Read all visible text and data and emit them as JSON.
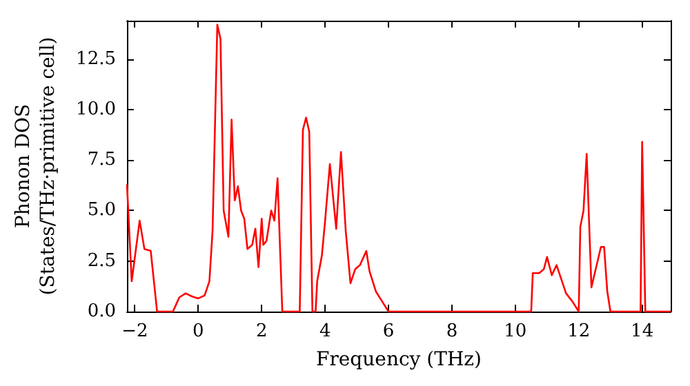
{
  "chart_data": {
    "type": "line",
    "xlabel": "Frequency (THz)",
    "ylabel": "Phonon DOS\n(States/THz·primitive cell)",
    "xlim": [
      -2.25,
      14.9
    ],
    "ylim": [
      0,
      14.4
    ],
    "xticks": [
      {
        "value": -2,
        "label": "−2"
      },
      0,
      2,
      4,
      6,
      8,
      10,
      12,
      14
    ],
    "yticks": [
      {
        "value": 0,
        "label": "0.0"
      },
      {
        "value": 2.5,
        "label": "2.5"
      },
      {
        "value": 5,
        "label": "5.0"
      },
      {
        "value": 7.5,
        "label": "7.5"
      },
      {
        "value": 10,
        "label": "10.0"
      },
      {
        "value": 12.5,
        "label": "12.5"
      }
    ],
    "grid": false,
    "marker": "none",
    "line_style": "solid",
    "series": [
      {
        "color": "#ff0000",
        "x": [
          -2.25,
          -2.1,
          -1.85,
          -1.7,
          -1.5,
          -1.3,
          -0.8,
          -0.6,
          -0.4,
          -0.2,
          0,
          0.2,
          0.35,
          0.45,
          0.6,
          0.7,
          0.8,
          0.95,
          1.05,
          1.15,
          1.25,
          1.35,
          1.45,
          1.55,
          1.7,
          1.8,
          1.9,
          2.0,
          2.05,
          2.15,
          2.3,
          2.4,
          2.5,
          2.65,
          3.2,
          3.3,
          3.4,
          3.5,
          3.6,
          3.7,
          3.75,
          3.9,
          4.0,
          4.15,
          4.35,
          4.5,
          4.65,
          4.8,
          4.95,
          5.1,
          5.3,
          5.4,
          5.6,
          5.8,
          6.0,
          10.5,
          10.55,
          10.75,
          10.9,
          11.0,
          11.15,
          11.3,
          11.45,
          11.6,
          11.8,
          12.0,
          12.05,
          12.15,
          12.25,
          12.4,
          12.55,
          12.7,
          12.8,
          12.9,
          13.0,
          13.95,
          14.0,
          14.1,
          14.9
        ],
        "values": [
          6.3,
          1.5,
          4.5,
          3.1,
          3.0,
          0,
          0,
          0.7,
          0.9,
          0.75,
          0.65,
          0.8,
          1.5,
          4,
          14.2,
          13.5,
          5,
          3.7,
          9.5,
          5.5,
          6.2,
          5,
          4.6,
          3.1,
          3.3,
          4.1,
          2.2,
          4.6,
          3.3,
          3.5,
          5,
          4.5,
          6.6,
          0,
          0,
          9.0,
          9.6,
          8.9,
          0,
          0,
          1.5,
          2.8,
          4.5,
          7.3,
          4.1,
          7.9,
          4,
          1.4,
          2.1,
          2.3,
          3.0,
          2.0,
          1.0,
          0.5,
          0,
          0,
          1.9,
          1.9,
          2.1,
          2.7,
          1.8,
          2.3,
          1.6,
          0.9,
          0.5,
          0,
          4.2,
          5.0,
          7.8,
          1.2,
          2.2,
          3.2,
          3.2,
          1.0,
          0,
          0,
          8.4,
          0,
          0
        ]
      }
    ]
  }
}
